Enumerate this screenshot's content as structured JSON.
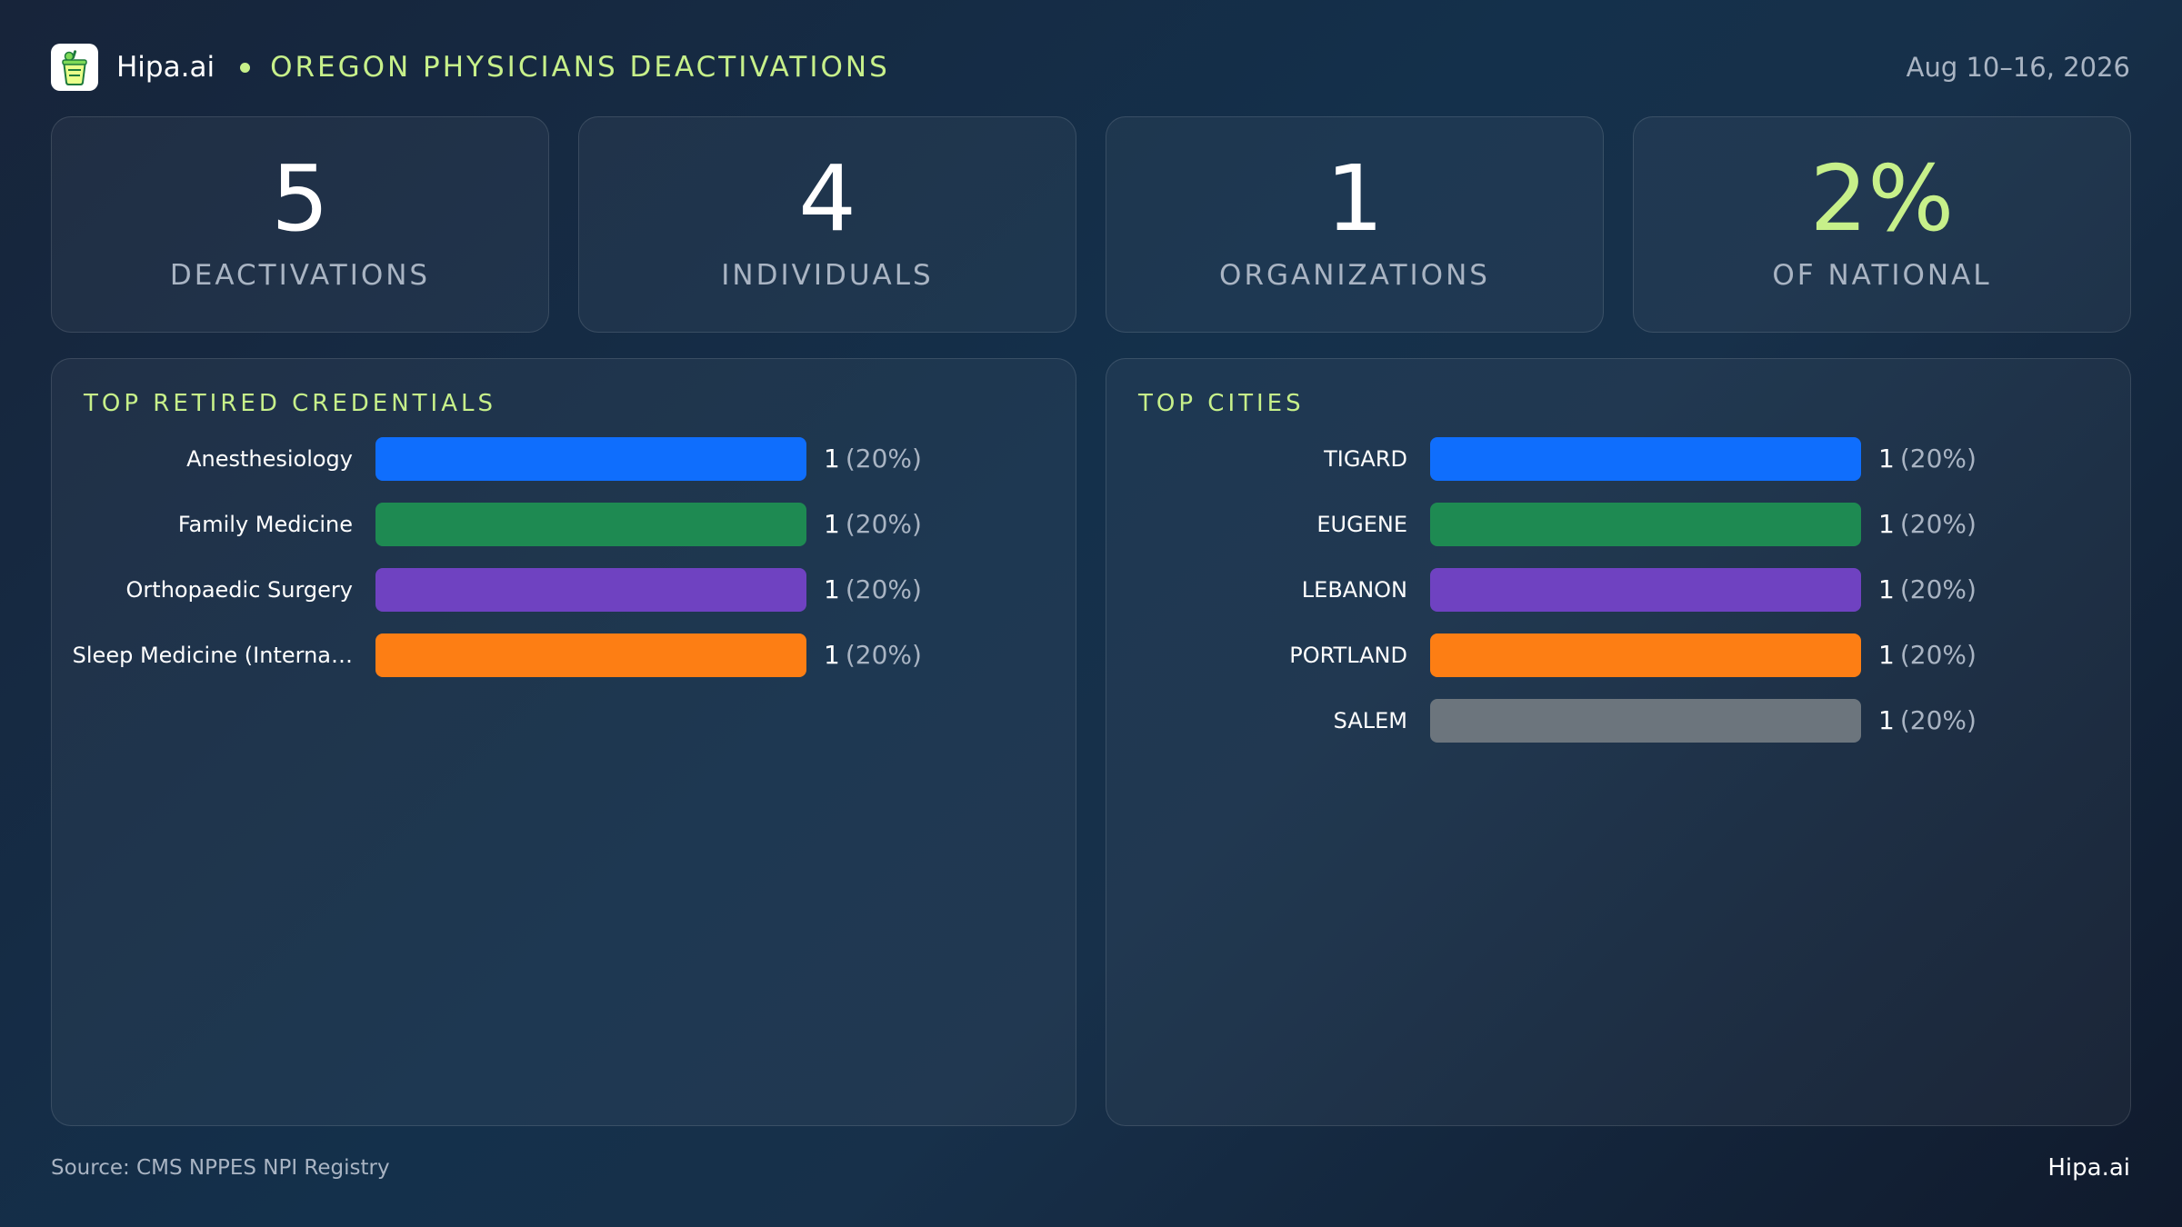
{
  "header": {
    "brand": "Hipa.ai",
    "title": "OREGON PHYSICIANS DEACTIVATIONS",
    "date_range": "Aug 10–16, 2026",
    "logo_icon": "drink-cup-icon"
  },
  "stats": [
    {
      "value": "5",
      "label": "DEACTIVATIONS"
    },
    {
      "value": "4",
      "label": "INDIVIDUALS"
    },
    {
      "value": "1",
      "label": "ORGANIZATIONS"
    },
    {
      "value": "2%",
      "label": "OF NATIONAL"
    }
  ],
  "colors": {
    "accent": "#c7f08a",
    "blue": "#0f6efd",
    "green": "#1e8a52",
    "purple": "#6f42c1",
    "orange": "#fd7e14",
    "gray": "#6c757d"
  },
  "chart_data": [
    {
      "type": "bar",
      "orientation": "horizontal",
      "title": "TOP RETIRED CREDENTIALS",
      "categories": [
        "Anesthesiology",
        "Family Medicine",
        "Orthopaedic Surgery",
        "Sleep Medicine (Interna…"
      ],
      "values": [
        1,
        1,
        1,
        1
      ],
      "value_labels": [
        {
          "count": "1",
          "pct": "(20%)"
        },
        {
          "count": "1",
          "pct": "(20%)"
        },
        {
          "count": "1",
          "pct": "(20%)"
        },
        {
          "count": "1",
          "pct": "(20%)"
        }
      ],
      "colors": [
        "#0f6efd",
        "#1e8a52",
        "#6f42c1",
        "#fd7e14"
      ],
      "xlim": [
        0,
        1
      ],
      "grid": false
    },
    {
      "type": "bar",
      "orientation": "horizontal",
      "title": "TOP CITIES",
      "categories": [
        "TIGARD",
        "EUGENE",
        "LEBANON",
        "PORTLAND",
        "SALEM"
      ],
      "values": [
        1,
        1,
        1,
        1,
        1
      ],
      "value_labels": [
        {
          "count": "1",
          "pct": "(20%)"
        },
        {
          "count": "1",
          "pct": "(20%)"
        },
        {
          "count": "1",
          "pct": "(20%)"
        },
        {
          "count": "1",
          "pct": "(20%)"
        },
        {
          "count": "1",
          "pct": "(20%)"
        }
      ],
      "colors": [
        "#0f6efd",
        "#1e8a52",
        "#6f42c1",
        "#fd7e14",
        "#6c757d"
      ],
      "xlim": [
        0,
        1
      ],
      "grid": false
    }
  ],
  "footer": {
    "source": "Source: CMS NPPES NPI Registry",
    "brand": "Hipa.ai"
  }
}
